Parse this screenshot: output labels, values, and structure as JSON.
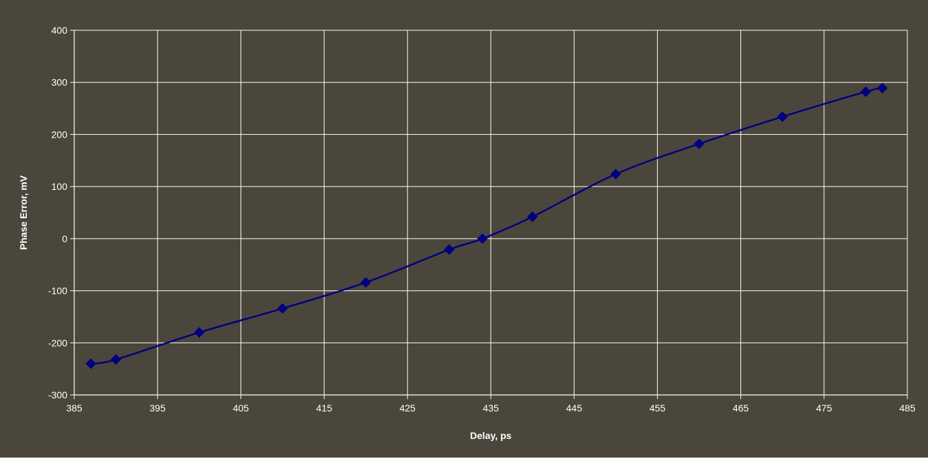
{
  "colors": {
    "outer_background": "#4b463b",
    "plot_background": "#4b463b",
    "gridline": "#ffffff",
    "series_line": "#000080",
    "series_marker": "#000080",
    "text": "#ffffff"
  },
  "chart_data": {
    "type": "line",
    "title": "",
    "xlabel": "Delay, ps",
    "ylabel": "Phase Error, mV",
    "xlim": [
      385,
      485
    ],
    "ylim": [
      -300,
      400
    ],
    "xticks": [
      385,
      395,
      405,
      415,
      425,
      435,
      445,
      455,
      465,
      475,
      485
    ],
    "yticks": [
      -300,
      -200,
      -100,
      0,
      100,
      200,
      300,
      400
    ],
    "grid": true,
    "legend": "none",
    "marker": "diamond",
    "line": "smoothed",
    "series": [
      {
        "x": [
          387,
          390,
          400,
          410,
          420,
          430,
          434,
          440,
          450,
          460,
          470,
          480,
          482
        ],
        "y": [
          -240,
          -232,
          -180,
          -134,
          -84,
          -21,
          0,
          42,
          124,
          182,
          234,
          282,
          289
        ]
      }
    ]
  }
}
